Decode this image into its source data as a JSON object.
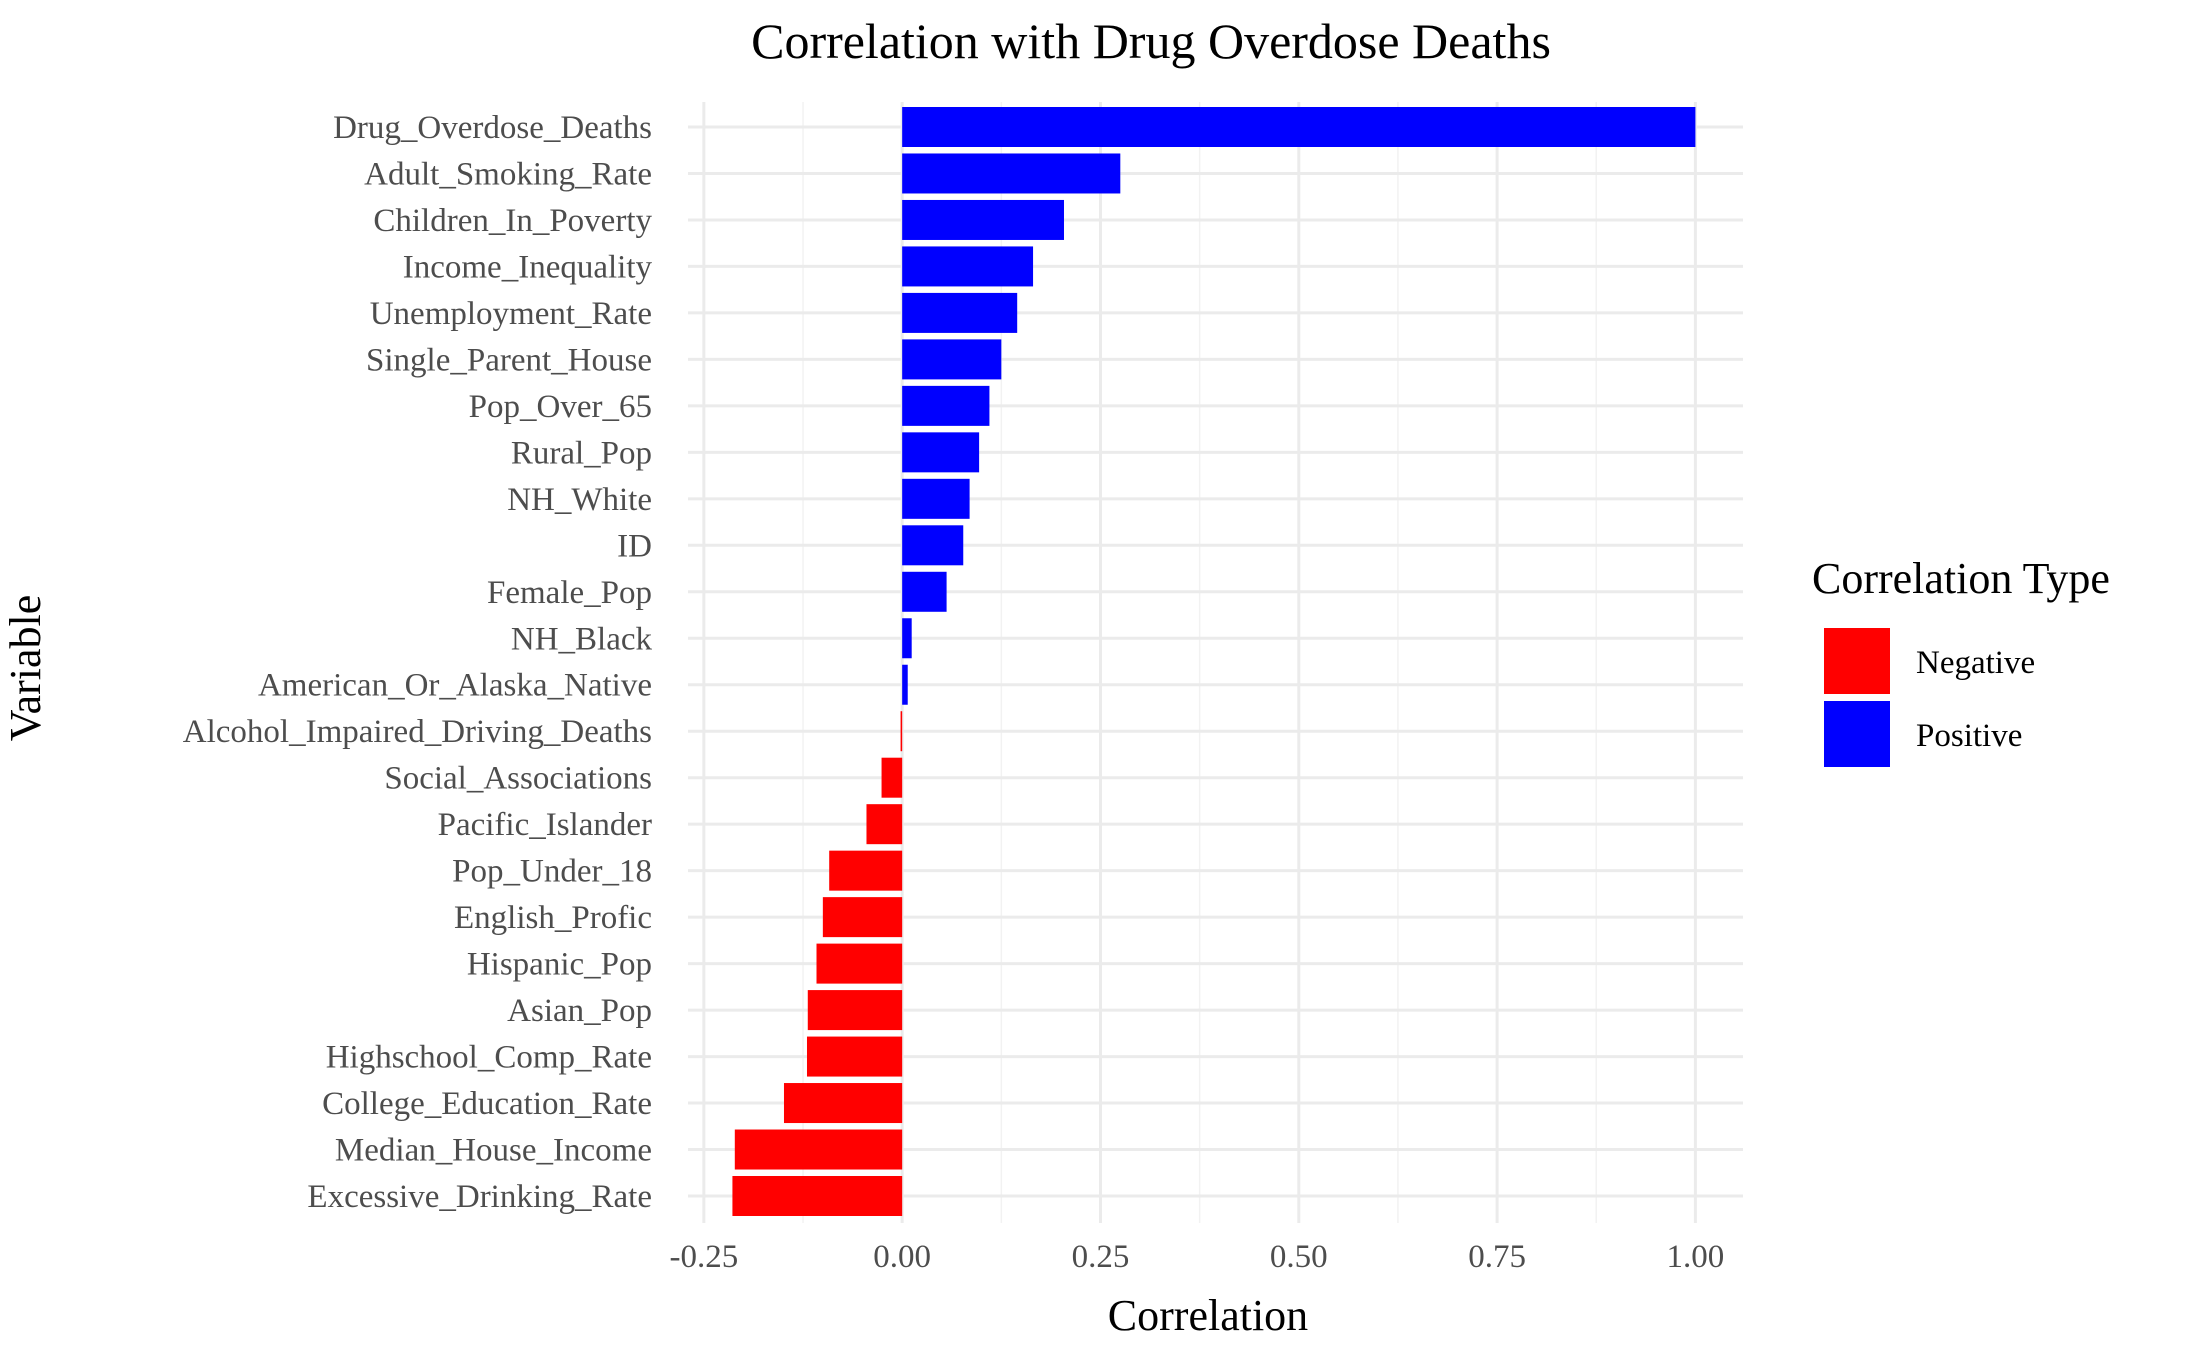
{
  "chart_data": {
    "type": "bar",
    "orientation": "horizontal",
    "title": "Correlation with Drug Overdose Deaths",
    "xlabel": "Correlation",
    "ylabel": "Variable",
    "xlim": [
      -0.27,
      1.06
    ],
    "xticks": [
      -0.25,
      0.0,
      0.25,
      0.5,
      0.75,
      1.0
    ],
    "xtick_labels": [
      "-0.25",
      "0.00",
      "0.25",
      "0.50",
      "0.75",
      "1.00"
    ],
    "grid": true,
    "legend": {
      "title": "Correlation Type",
      "position": "right",
      "items": [
        {
          "label": "Negative",
          "color": "#ff0000"
        },
        {
          "label": "Positive",
          "color": "#0000ff"
        }
      ]
    },
    "categories": [
      "Drug_Overdose_Deaths",
      "Adult_Smoking_Rate",
      "Children_In_Poverty",
      "Income_Inequality",
      "Unemployment_Rate",
      "Single_Parent_House",
      "Pop_Over_65",
      "Rural_Pop",
      "NH_White",
      "ID",
      "Female_Pop",
      "NH_Black",
      "American_Or_Alaska_Native",
      "Alcohol_Impaired_Driving_Deaths",
      "Social_Associations",
      "Pacific_Islander",
      "Pop_Under_18",
      "English_Profic",
      "Hispanic_Pop",
      "Asian_Pop",
      "Highschool_Comp_Rate",
      "College_Education_Rate",
      "Median_House_Income",
      "Excessive_Drinking_Rate"
    ],
    "values": [
      1.0,
      0.275,
      0.204,
      0.165,
      0.145,
      0.125,
      0.11,
      0.097,
      0.085,
      0.077,
      0.056,
      0.012,
      0.007,
      -0.002,
      -0.026,
      -0.045,
      -0.092,
      -0.1,
      -0.108,
      -0.119,
      -0.12,
      -0.149,
      -0.211,
      -0.214
    ]
  }
}
